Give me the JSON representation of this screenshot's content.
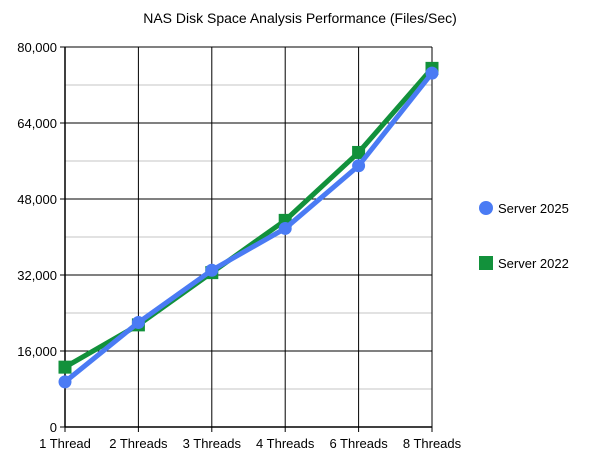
{
  "chart_data": {
    "type": "line",
    "title": "NAS Disk Space Analysis Performance (Files/Sec)",
    "xlabel": "",
    "ylabel": "",
    "categories": [
      "1 Thread",
      "2 Threads",
      "3 Threads",
      "4 Threads",
      "6 Threads",
      "8 Threads"
    ],
    "ylim": [
      0,
      80000
    ],
    "yticks": [
      0,
      16000,
      32000,
      48000,
      64000,
      80000
    ],
    "ytick_labels": [
      "0",
      "16,000",
      "32,000",
      "48,000",
      "64,000",
      "80,000"
    ],
    "grid": true,
    "legend_position": "right",
    "series": [
      {
        "name": "Server 2025",
        "color": "#4a7bf4",
        "marker": "circle",
        "values": [
          9500,
          22000,
          33000,
          41800,
          55000,
          74500
        ]
      },
      {
        "name": "Server 2022",
        "color": "#12913b",
        "marker": "square",
        "values": [
          12600,
          21500,
          32500,
          43500,
          57800,
          75500
        ]
      }
    ]
  }
}
